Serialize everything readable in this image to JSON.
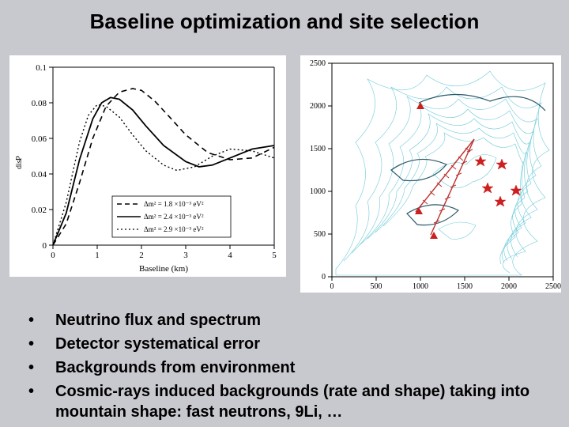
{
  "title": "Baseline optimization and site selection",
  "left_chart": {
    "type": "line",
    "xlabel": "Baseline (km)",
    "ylabel": "P_dis",
    "xlim": [
      0,
      5
    ],
    "ylim": [
      0,
      0.1
    ],
    "xticks": [
      0,
      1,
      2,
      3,
      4,
      5
    ],
    "yticks": [
      0,
      0.02,
      0.04,
      0.06,
      0.08,
      0.1
    ],
    "background_color": "#ffffff",
    "axis_color": "#000000",
    "series": [
      {
        "label": "Δm² = 1.8 ×10⁻³ eV²",
        "style": "dashed",
        "color": "#000000",
        "linewidth": 1.6,
        "points": [
          [
            0,
            0
          ],
          [
            0.3,
            0.012
          ],
          [
            0.6,
            0.035
          ],
          [
            0.9,
            0.06
          ],
          [
            1.2,
            0.078
          ],
          [
            1.5,
            0.086
          ],
          [
            1.8,
            0.088
          ],
          [
            2.0,
            0.087
          ],
          [
            2.3,
            0.081
          ],
          [
            2.6,
            0.073
          ],
          [
            3.0,
            0.062
          ],
          [
            3.5,
            0.052
          ],
          [
            4.0,
            0.048
          ],
          [
            4.5,
            0.049
          ],
          [
            5.0,
            0.055
          ]
        ]
      },
      {
        "label": "Δm² = 2.4 ×10⁻³ eV²",
        "style": "solid",
        "color": "#000000",
        "linewidth": 1.8,
        "points": [
          [
            0,
            0
          ],
          [
            0.3,
            0.018
          ],
          [
            0.6,
            0.048
          ],
          [
            0.9,
            0.071
          ],
          [
            1.1,
            0.08
          ],
          [
            1.3,
            0.083
          ],
          [
            1.5,
            0.082
          ],
          [
            1.8,
            0.076
          ],
          [
            2.1,
            0.067
          ],
          [
            2.5,
            0.056
          ],
          [
            3.0,
            0.047
          ],
          [
            3.3,
            0.044
          ],
          [
            3.6,
            0.045
          ],
          [
            4.0,
            0.049
          ],
          [
            4.5,
            0.054
          ],
          [
            5.0,
            0.056
          ]
        ]
      },
      {
        "label": "Δm² = 2.9 ×10⁻³ eV²",
        "style": "dotted",
        "color": "#000000",
        "linewidth": 1.4,
        "points": [
          [
            0,
            0
          ],
          [
            0.3,
            0.024
          ],
          [
            0.6,
            0.058
          ],
          [
            0.8,
            0.073
          ],
          [
            1.0,
            0.079
          ],
          [
            1.2,
            0.078
          ],
          [
            1.5,
            0.072
          ],
          [
            1.8,
            0.062
          ],
          [
            2.1,
            0.053
          ],
          [
            2.5,
            0.045
          ],
          [
            2.8,
            0.042
          ],
          [
            3.2,
            0.044
          ],
          [
            3.6,
            0.05
          ],
          [
            4.0,
            0.054
          ],
          [
            4.5,
            0.053
          ],
          [
            5.0,
            0.049
          ]
        ]
      }
    ],
    "legend_position": "lower-center"
  },
  "right_chart": {
    "type": "map",
    "xlim": [
      0,
      2500
    ],
    "ylim": [
      0,
      2500
    ],
    "xticks": [
      0,
      500,
      1000,
      1500,
      2000,
      2500
    ],
    "yticks": [
      0,
      500,
      1000,
      1500,
      2000,
      2500
    ],
    "background_color": "#ffffff",
    "contour_color": "#5ec5d5",
    "dark_contour_color": "#2a5a6a",
    "axis_color": "#000000",
    "line_color": "#bb3030",
    "triangle_color": "#cc2020",
    "star_color": "#cc2020",
    "triangles": [
      [
        1000,
        2050
      ],
      [
        980,
        820
      ],
      [
        1150,
        530
      ]
    ],
    "stars": [
      [
        1680,
        1420
      ],
      [
        1920,
        1380
      ],
      [
        1760,
        1100
      ],
      [
        2080,
        1070
      ],
      [
        1900,
        940
      ]
    ],
    "baseline_lines": [
      [
        [
          1610,
          1610
        ],
        [
          950,
          760
        ]
      ],
      [
        [
          1610,
          1610
        ],
        [
          1120,
          490
        ]
      ]
    ],
    "tick_marks_on_lines": true
  },
  "bullets": [
    "Neutrino flux and spectrum",
    "Detector systematical error",
    "Backgrounds from environment",
    "Cosmic-rays induced backgrounds (rate and shape) taking into mountain  shape: fast neutrons, 9Li, …"
  ]
}
